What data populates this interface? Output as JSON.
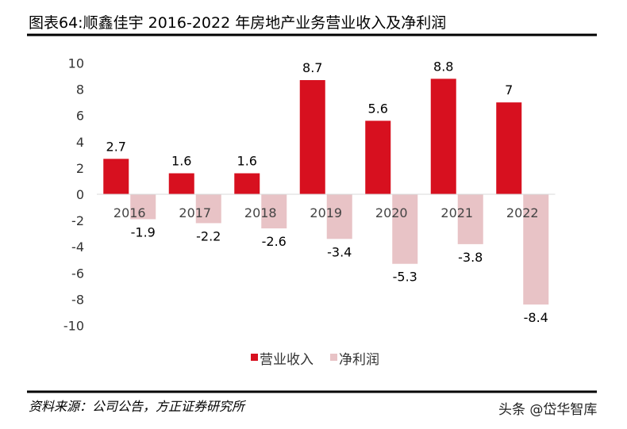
{
  "chart_data": {
    "type": "bar",
    "title": "图表64:顺鑫佳宇 2016-2022 年房地产业务营业收入及净利润",
    "categories": [
      "2016",
      "2017",
      "2018",
      "2019",
      "2020",
      "2021",
      "2022"
    ],
    "series": [
      {
        "name": "营业收入",
        "values": [
          2.7,
          1.6,
          1.6,
          8.7,
          5.6,
          8.8,
          7
        ],
        "color": "#d7101f"
      },
      {
        "name": "净利润",
        "values": [
          -1.9,
          -2.2,
          -2.6,
          -3.4,
          -5.3,
          -3.8,
          -8.4
        ],
        "color": "#e8c3c6"
      }
    ],
    "ylim": [
      -10,
      10
    ],
    "yticks": [
      10,
      8,
      6,
      4,
      2,
      0,
      -2,
      -4,
      -6,
      -8,
      -10
    ],
    "grid": false,
    "legend": "bottom",
    "xlabel": "",
    "ylabel": ""
  },
  "source": "资料来源：公司公告，方正证券研究所",
  "watermark": "头条 @岱华智库"
}
